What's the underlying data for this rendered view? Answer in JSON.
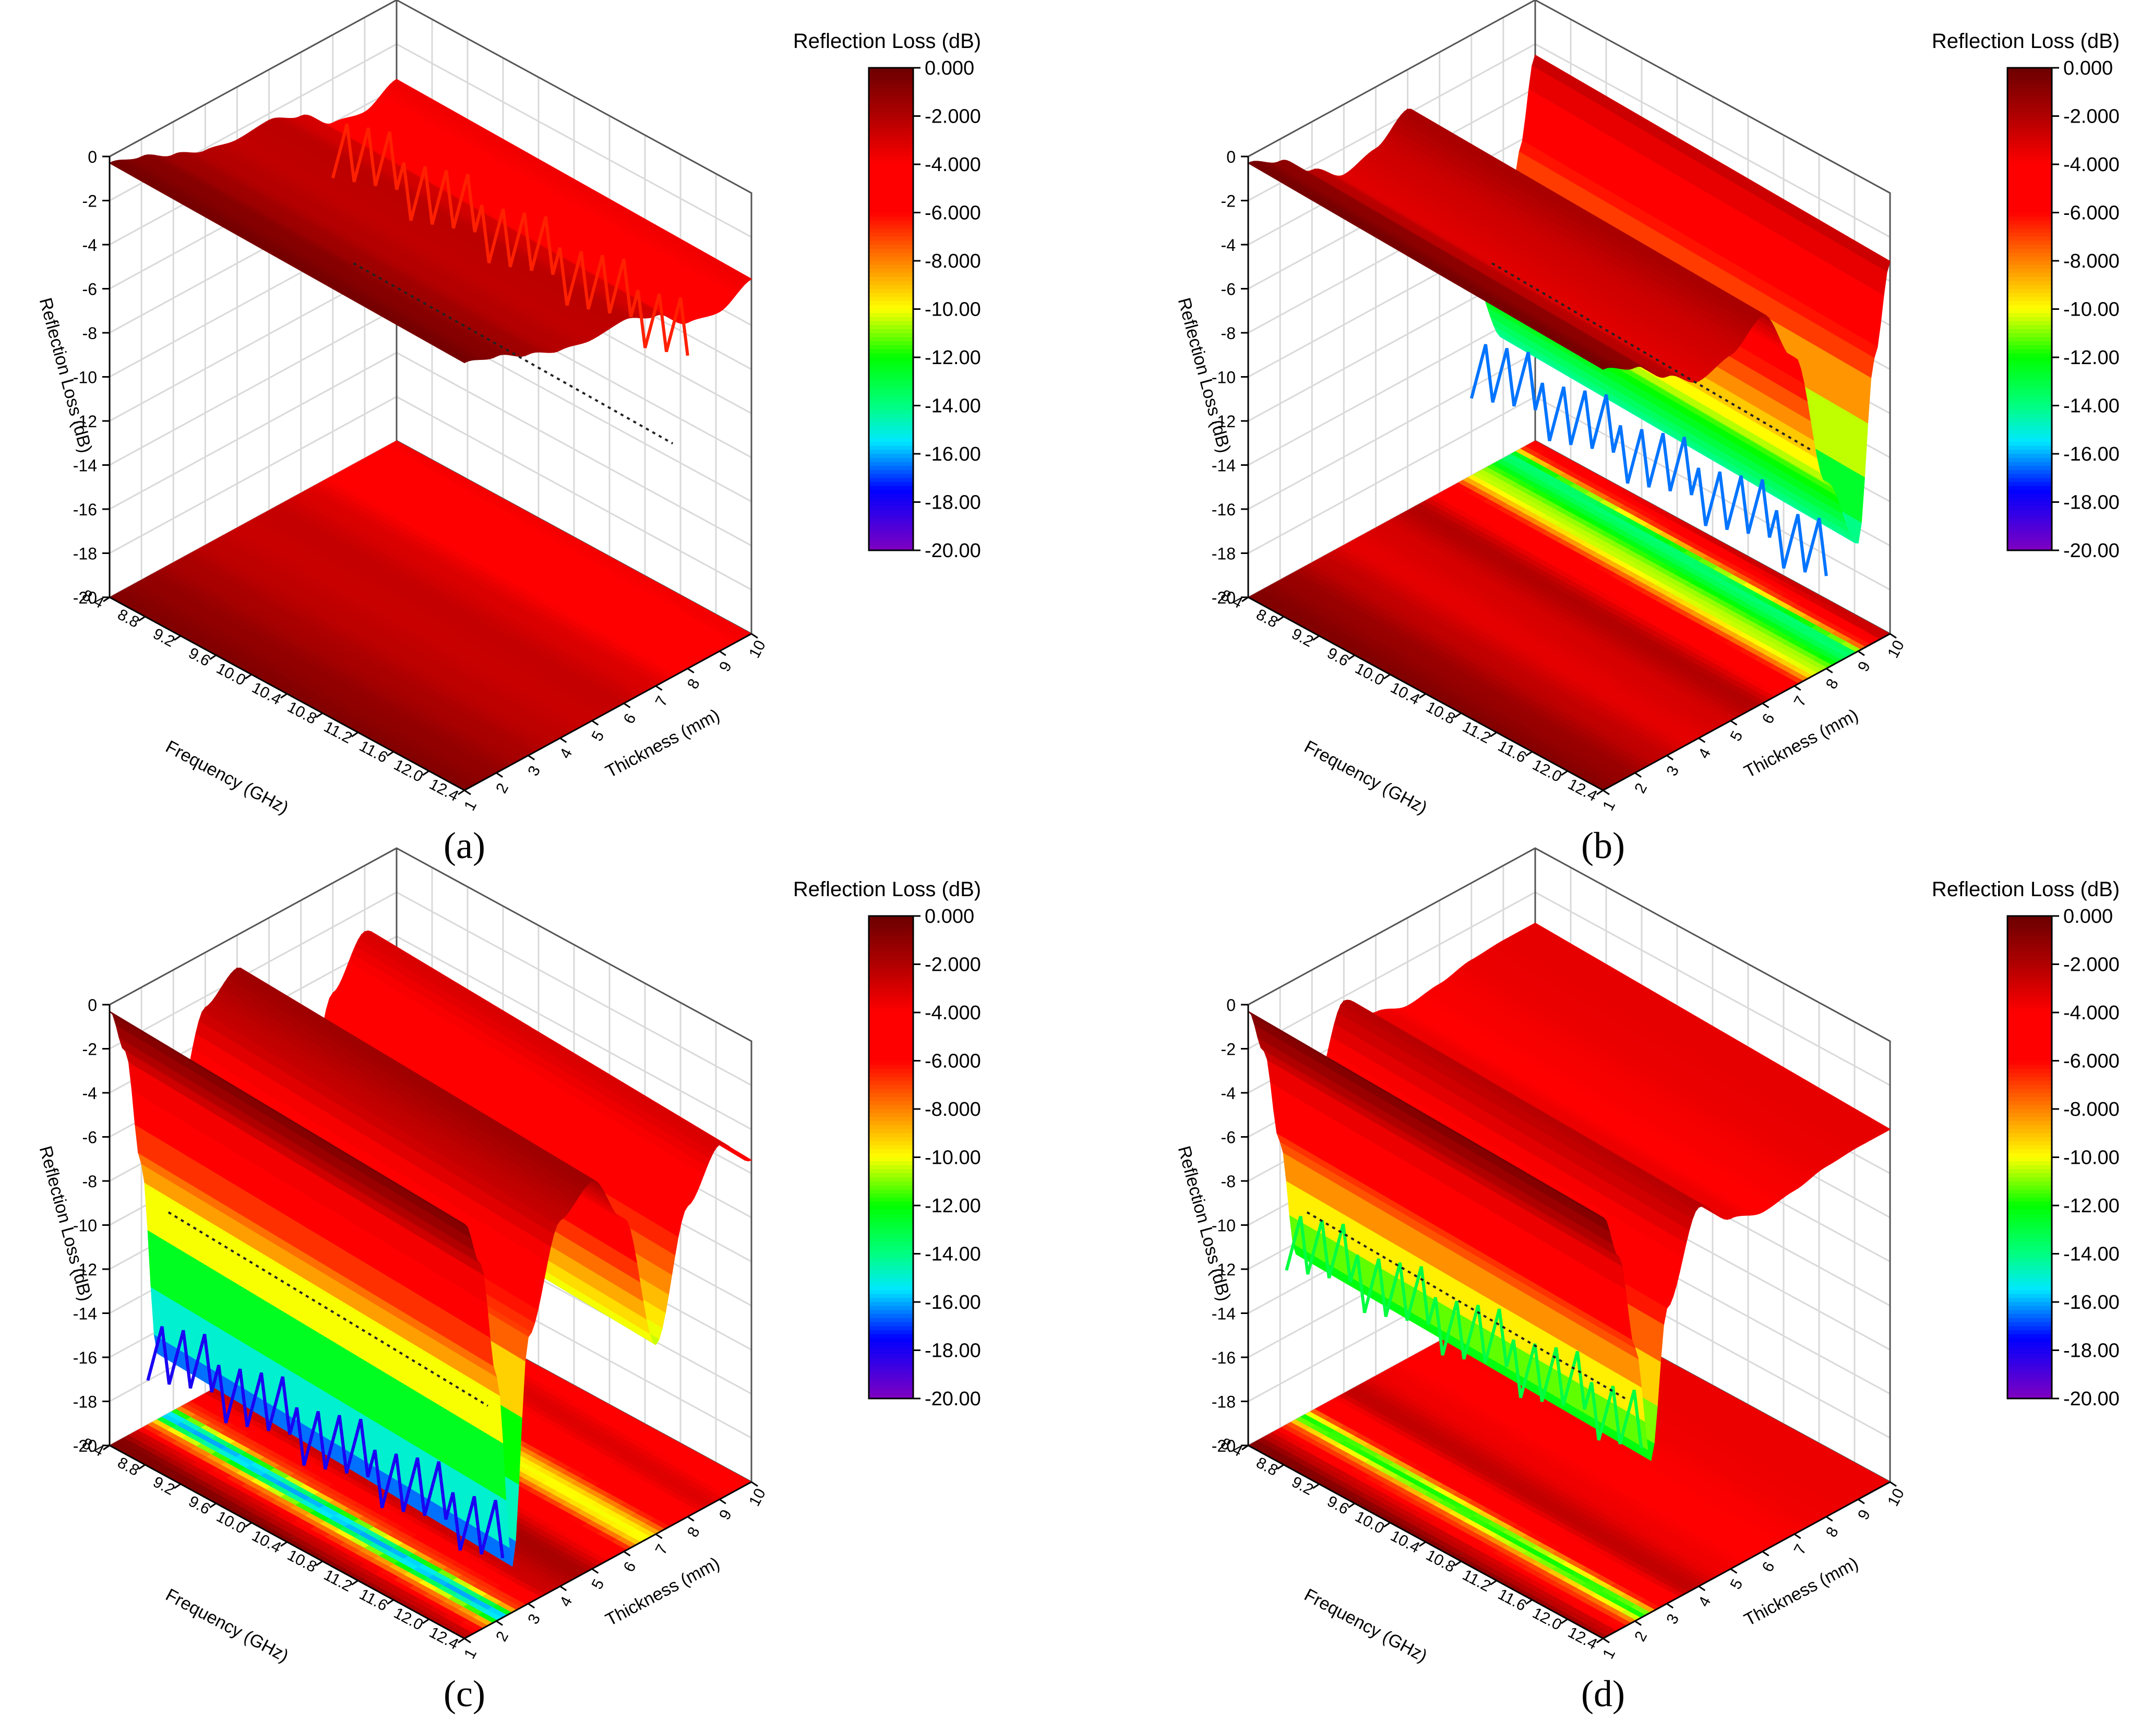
{
  "colors": {
    "colormap": [
      "#ff0000",
      "#ff0000",
      "#ff7f00",
      "#ffff00",
      "#00ff00",
      "#00ffff",
      "#0000ff",
      "#8000ff"
    ],
    "frame": "#000000",
    "grid": "#d9d9d9",
    "dotted_contour": "#222222"
  },
  "colorbar": {
    "title": "Reflection Loss (dB)",
    "ticks": [
      "0.000",
      "-2.000",
      "-4.000",
      "-6.000",
      "-8.000",
      "-10.00",
      "-12.00",
      "-14.00",
      "-16.00",
      "-18.00",
      "-20.00"
    ]
  },
  "axes": {
    "zlabel": "Reflection Loss (dB)",
    "zticks": [
      "0",
      "-2",
      "-4",
      "-6",
      "-8",
      "-10",
      "-12",
      "-14",
      "-16",
      "-18",
      "-20"
    ],
    "xlabel": "Frequency (GHz)",
    "xticks": [
      "8.4",
      "8.8",
      "9.2",
      "9.6",
      "10.0",
      "10.4",
      "10.8",
      "11.2",
      "11.6",
      "12.0",
      "12.4"
    ],
    "ylabel": "Thickness (mm)",
    "yticks": [
      "1",
      "2",
      "3",
      "4",
      "5",
      "6",
      "7",
      "8",
      "9",
      "10"
    ]
  },
  "chart_data": [
    {
      "type": "surface-3d",
      "panel": "(a)",
      "x_axis": "Frequency (GHz)",
      "xlim": [
        8.4,
        12.4
      ],
      "y_axis": "Thickness (mm)",
      "ylim": [
        1,
        10
      ],
      "z_axis": "Reflection Loss (dB)",
      "zlim": [
        -20,
        0
      ],
      "colorbar_range": [
        -20,
        0
      ],
      "thickness_profile": [
        {
          "t": 1,
          "rl": -0.3
        },
        {
          "t": 2,
          "rl": -0.8
        },
        {
          "t": 3,
          "rl": -1.5
        },
        {
          "t": 4,
          "rl": -2.1
        },
        {
          "t": 5,
          "rl": -2.4
        },
        {
          "t": 6,
          "rl": -2.3
        },
        {
          "t": 7,
          "rl": -2.9
        },
        {
          "t": 8,
          "rl": -4.0
        },
        {
          "t": 9,
          "rl": -4.3
        },
        {
          "t": 10,
          "rl": -3.6
        }
      ],
      "min_rl": -6.5,
      "frequency_dependence": 0.05,
      "noisy_from_thickness": 8
    },
    {
      "type": "surface-3d",
      "panel": "(b)",
      "x_axis": "Frequency (GHz)",
      "xlim": [
        8.4,
        12.4
      ],
      "y_axis": "Thickness (mm)",
      "ylim": [
        1,
        10
      ],
      "z_axis": "Reflection Loss (dB)",
      "zlim": [
        -20,
        0
      ],
      "colorbar_range": [
        -20,
        0
      ],
      "thickness_profile": [
        {
          "t": 1,
          "rl": -0.3
        },
        {
          "t": 2,
          "rl": -1.0
        },
        {
          "t": 3,
          "rl": -2.2
        },
        {
          "t": 4,
          "rl": -3.2
        },
        {
          "t": 5,
          "rl": -2.8
        },
        {
          "t": 6,
          "rl": -1.8
        },
        {
          "t": 7,
          "rl": -4.5
        },
        {
          "t": 8,
          "rl": -11.0
        },
        {
          "t": 9,
          "rl": -14.5
        },
        {
          "t": 9.5,
          "rl": -6.5
        },
        {
          "t": 10,
          "rl": -2.5
        }
      ],
      "min_rl": -16.5,
      "frequency_dependence": 0.1,
      "noisy_from_thickness": 8
    },
    {
      "type": "surface-3d",
      "panel": "(c)",
      "x_axis": "Frequency (GHz)",
      "xlim": [
        8.4,
        12.4
      ],
      "y_axis": "Thickness (mm)",
      "ylim": [
        1,
        10
      ],
      "z_axis": "Reflection Loss (dB)",
      "zlim": [
        -20,
        0
      ],
      "colorbar_range": [
        -20,
        0
      ],
      "thickness_profile": [
        {
          "t": 1,
          "rl": -0.3
        },
        {
          "t": 1.5,
          "rl": -2.5
        },
        {
          "t": 2,
          "rl": -8.0
        },
        {
          "t": 2.5,
          "rl": -17.0
        },
        {
          "t": 3,
          "rl": -7.0
        },
        {
          "t": 4,
          "rl": -2.5
        },
        {
          "t": 5,
          "rl": -1.5
        },
        {
          "t": 6,
          "rl": -4.0
        },
        {
          "t": 7,
          "rl": -10.5
        },
        {
          "t": 8,
          "rl": -5.0
        },
        {
          "t": 9,
          "rl": -3.0
        },
        {
          "t": 10,
          "rl": -4.5
        }
      ],
      "min_rl": -18.0,
      "frequency_dependence": 0.15,
      "noisy_from_thickness": 2.2
    },
    {
      "type": "surface-3d",
      "panel": "(d)",
      "x_axis": "Frequency (GHz)",
      "xlim": [
        8.4,
        12.4
      ],
      "y_axis": "Thickness (mm)",
      "ylim": [
        1,
        10
      ],
      "z_axis": "Reflection Loss (dB)",
      "zlim": [
        -20,
        0
      ],
      "colorbar_range": [
        -20,
        0
      ],
      "thickness_profile": [
        {
          "t": 1,
          "rl": -0.3
        },
        {
          "t": 1.5,
          "rl": -2.5
        },
        {
          "t": 2,
          "rl": -7.0
        },
        {
          "t": 2.5,
          "rl": -12.5
        },
        {
          "t": 3,
          "rl": -6.0
        },
        {
          "t": 4,
          "rl": -2.2
        },
        {
          "t": 5,
          "rl": -3.5
        },
        {
          "t": 6,
          "rl": -4.0
        },
        {
          "t": 7,
          "rl": -3.8
        },
        {
          "t": 8,
          "rl": -3.5
        },
        {
          "t": 9,
          "rl": -3.4
        },
        {
          "t": 10,
          "rl": -3.4
        }
      ],
      "min_rl": -13.0,
      "frequency_dependence": 0.1,
      "noisy_from_thickness": 2.2
    }
  ]
}
